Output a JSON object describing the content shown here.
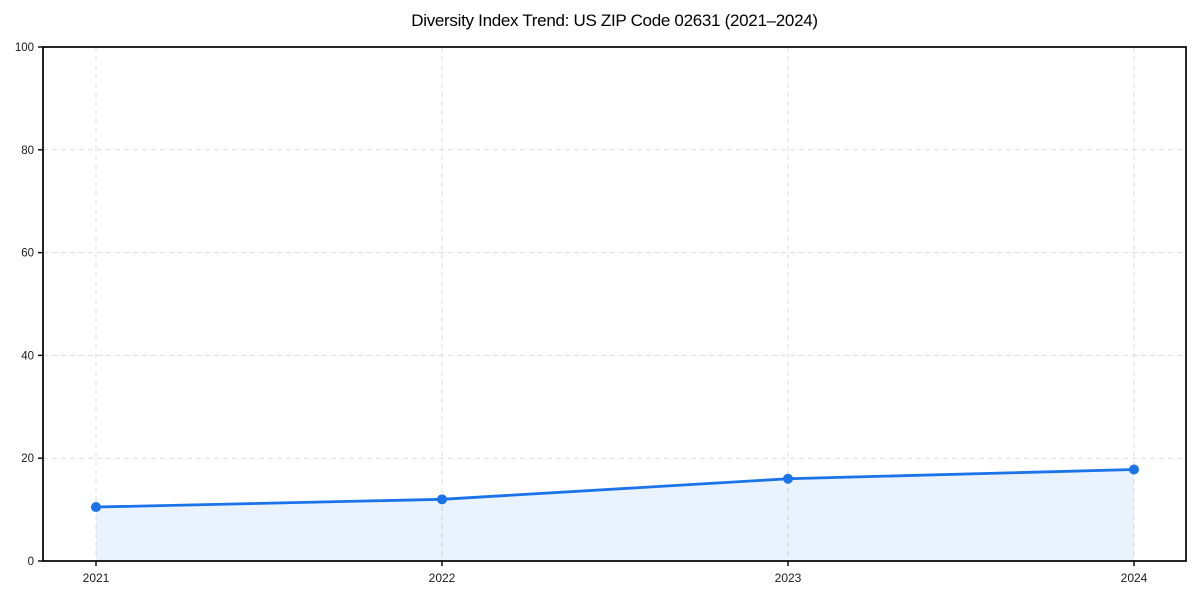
{
  "page": {
    "background": "#ffffff"
  },
  "chart_data": {
    "type": "line",
    "title": "Diversity Index Trend: US ZIP Code 02631 (2021–2024)",
    "x": [
      "2021",
      "2022",
      "2023",
      "2024"
    ],
    "series": [
      {
        "name": "Diversity Index",
        "values": [
          10.5,
          12.0,
          16.0,
          17.8
        ]
      }
    ],
    "ylim": [
      0,
      100
    ],
    "yticks": [
      0,
      20,
      40,
      60,
      80,
      100
    ],
    "xlabel": "",
    "ylabel": "",
    "grid": "dashed-both-axes",
    "legend": "none",
    "area_fill": true,
    "marker": "circle",
    "colors": {
      "line": "#1a73e8",
      "marker": "#1a73e8",
      "fill": "rgba(26,115,232,0.09)",
      "grid": "#dcdcdc",
      "axis": "#000000",
      "tick_label": "#1a1a1a",
      "title": "#000000"
    }
  }
}
